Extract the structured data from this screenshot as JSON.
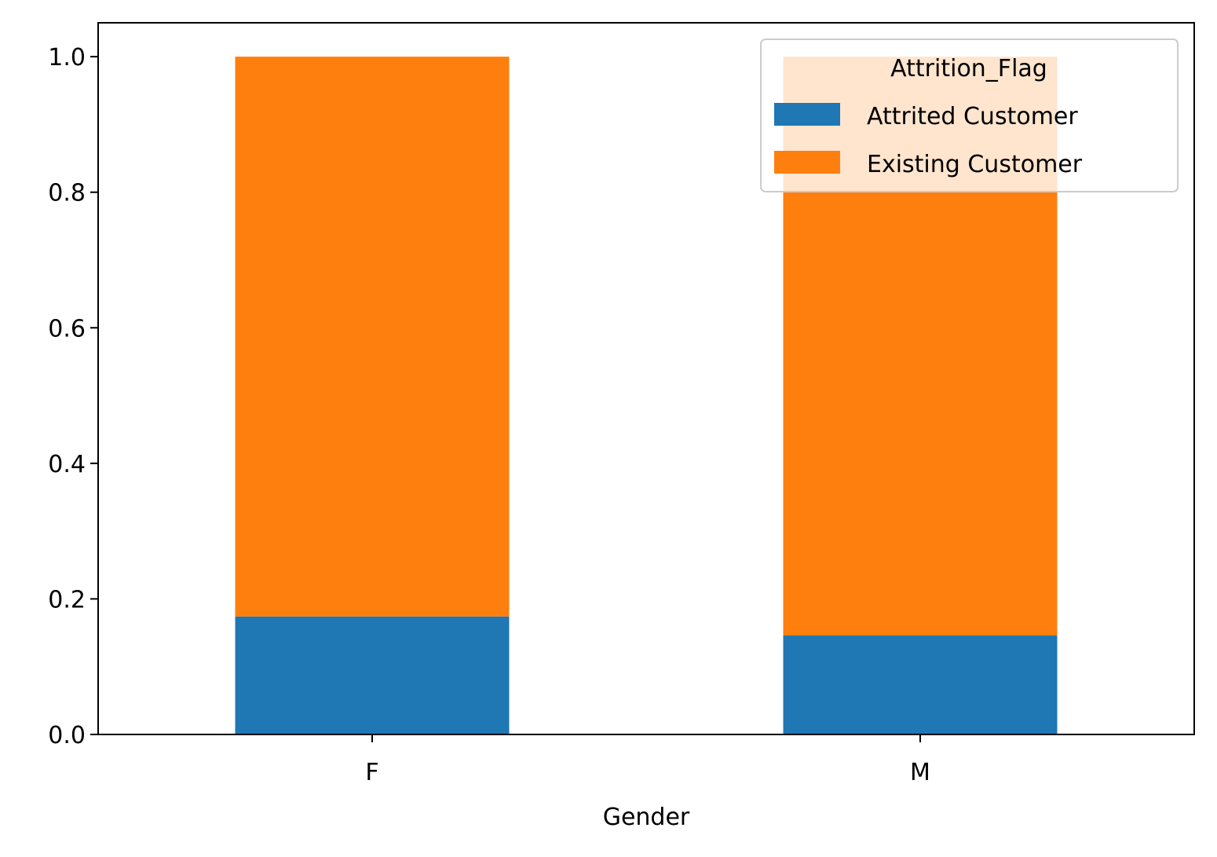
{
  "chart_data": {
    "type": "bar",
    "stacked": true,
    "categories": [
      "F",
      "M"
    ],
    "series": [
      {
        "name": "Attrited Customer",
        "values": [
          0.174,
          0.146
        ],
        "color": "#1f77b4"
      },
      {
        "name": "Existing Customer",
        "values": [
          0.826,
          0.854
        ],
        "color": "#ff7f0e"
      }
    ],
    "title": "",
    "xlabel": "Gender",
    "ylabel": "",
    "ylim": [
      0,
      1.05
    ],
    "yticks": [
      0.0,
      0.2,
      0.4,
      0.6,
      0.8,
      1.0
    ],
    "ytick_labels": [
      "0.0",
      "0.2",
      "0.4",
      "0.6",
      "0.8",
      "1.0"
    ],
    "grid": false,
    "legend": {
      "title": "Attrition_Flag",
      "placement": "top-right"
    }
  }
}
